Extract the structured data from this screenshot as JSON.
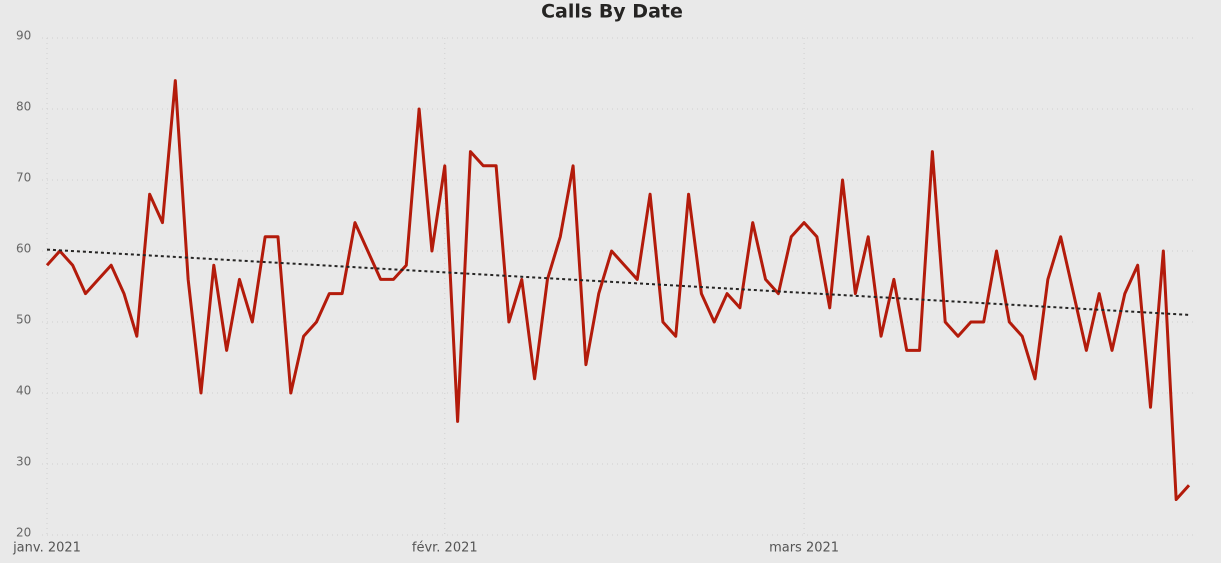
{
  "chart_data": {
    "type": "line",
    "title": "Calls By Date",
    "categories": [
      "janv. 2021",
      null,
      null,
      null,
      null,
      null,
      null,
      null,
      null,
      null,
      null,
      null,
      null,
      null,
      null,
      null,
      null,
      null,
      null,
      null,
      null,
      null,
      null,
      null,
      null,
      null,
      null,
      null,
      null,
      null,
      null,
      "févr. 2021",
      null,
      null,
      null,
      null,
      null,
      null,
      null,
      null,
      null,
      null,
      null,
      null,
      null,
      null,
      null,
      null,
      null,
      null,
      null,
      null,
      null,
      null,
      null,
      null,
      null,
      null,
      null,
      "mars 2021",
      null,
      null,
      null,
      null,
      null,
      null,
      null,
      null,
      null,
      null,
      null,
      null,
      null,
      null,
      null,
      null,
      null,
      null,
      null,
      null,
      null,
      null,
      null,
      null,
      null,
      null,
      null,
      null,
      null,
      null
    ],
    "series": [
      {
        "color": "#b31b0b",
        "values": [
          58,
          60,
          58,
          54,
          56,
          58,
          54,
          48,
          68,
          64,
          84,
          56,
          40,
          58,
          46,
          56,
          50,
          62,
          62,
          40,
          48,
          50,
          54,
          54,
          64,
          60,
          56,
          56,
          58,
          80,
          60,
          72,
          36,
          74,
          72,
          72,
          50,
          56,
          42,
          56,
          62,
          72,
          44,
          54,
          60,
          58,
          56,
          68,
          50,
          48,
          68,
          54,
          50,
          54,
          52,
          64,
          56,
          54,
          62,
          64,
          62,
          52,
          70,
          54,
          62,
          48,
          56,
          46,
          46,
          74,
          50,
          48,
          50,
          50,
          60,
          50,
          48,
          42,
          56,
          62,
          54,
          46,
          54,
          46,
          54,
          58,
          38,
          60,
          25,
          27
        ]
      }
    ],
    "trend": {
      "color": "#252423",
      "values": [
        60.2,
        51
      ]
    },
    "ylim": [
      20,
      90
    ],
    "yticks": [
      20,
      30,
      40,
      50,
      60,
      70,
      80,
      90
    ],
    "grid": true
  }
}
